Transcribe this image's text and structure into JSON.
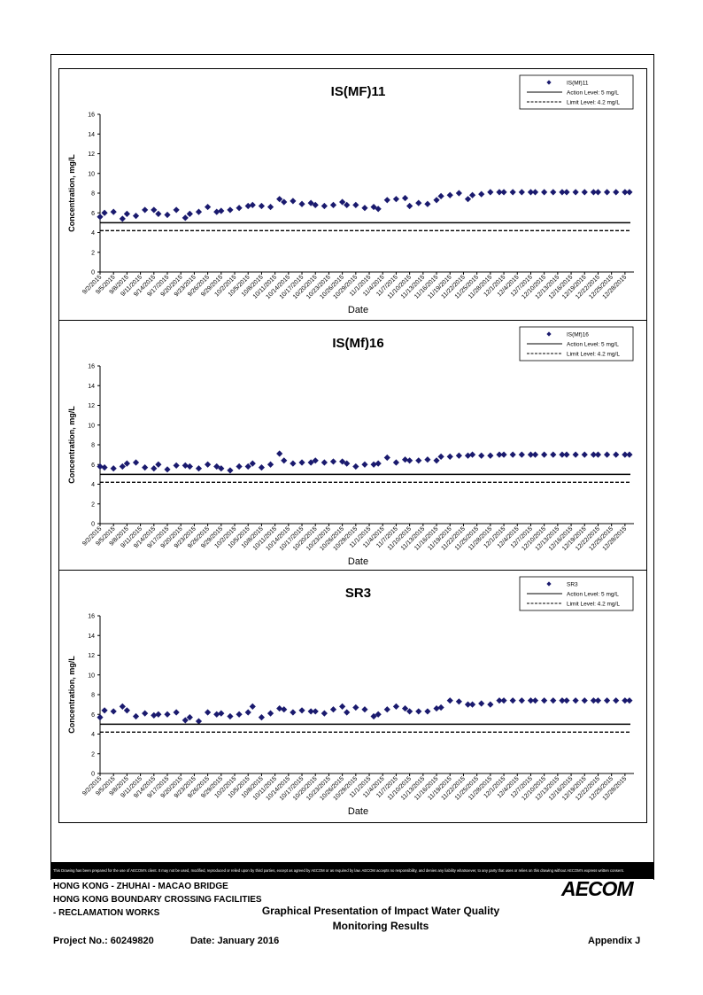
{
  "footer": {
    "disclaimer": "This Drawing has been prepared for the use of AECOM's client. It may not be used, modified, reproduced or relied upon by third parties, except as agreed by AECOM or as required by law. AECOM accepts no responsibility, and denies any liability whatsoever, to any party that uses or relies on this drawing without AECOM's express written consent.",
    "line1": "HONG KONG - ZHUHAI - MACAO BRIDGE",
    "line2": "HONG KONG BOUNDARY CROSSING FACILITIES",
    "line3": "- RECLAMATION WORKS",
    "doc_title_1": "Graphical Presentation of Impact Water Quality",
    "doc_title_2": "Monitoring Results",
    "project_no": "Project No.: 60249820",
    "date": "Date: January 2016",
    "appendix": "Appendix J",
    "logo": "AECOM"
  },
  "colors": {
    "marker": "#1a1a6e",
    "line": "#000000"
  },
  "chart_data": [
    {
      "type": "scatter",
      "title": "IS(MF)11",
      "xlabel": "Date",
      "ylabel": "Concentration, mg/L",
      "ylim": [
        0,
        16
      ],
      "yticks": [
        0,
        2,
        4,
        6,
        8,
        10,
        12,
        14,
        16
      ],
      "grid": false,
      "legend_position": "top-right",
      "xticks": [
        "9/2/2015",
        "9/5/2015",
        "9/8/2015",
        "9/11/2015",
        "9/14/2015",
        "9/17/2015",
        "9/20/2015",
        "9/23/2015",
        "9/26/2015",
        "9/29/2015",
        "10/2/2015",
        "10/5/2015",
        "10/8/2015",
        "10/11/2015",
        "10/14/2015",
        "10/17/2015",
        "10/20/2015",
        "10/23/2015",
        "10/26/2015",
        "10/29/2015",
        "11/1/2015",
        "11/4/2015",
        "11/7/2015",
        "11/10/2015",
        "11/13/2015",
        "11/16/2015",
        "11/19/2015",
        "11/22/2015",
        "11/25/2015",
        "11/28/2015",
        "12/1/2015",
        "12/4/2015",
        "12/7/2015",
        "12/10/2015",
        "12/13/2015",
        "12/16/2015",
        "12/19/2015",
        "12/22/2015",
        "12/25/2015",
        "12/28/2015"
      ],
      "series": [
        {
          "name": "IS(Mf)11",
          "marker": "diamond",
          "x": [
            "9/2/2015",
            "9/3/2015",
            "9/5/2015",
            "9/7/2015",
            "9/8/2015",
            "9/10/2015",
            "9/12/2015",
            "9/14/2015",
            "9/15/2015",
            "9/17/2015",
            "9/19/2015",
            "9/21/2015",
            "9/22/2015",
            "9/24/2015",
            "9/26/2015",
            "9/28/2015",
            "9/29/2015",
            "10/1/2015",
            "10/3/2015",
            "10/5/2015",
            "10/6/2015",
            "10/8/2015",
            "10/10/2015",
            "10/12/2015",
            "10/13/2015",
            "10/15/2015",
            "10/17/2015",
            "10/19/2015",
            "10/20/2015",
            "10/22/2015",
            "10/24/2015",
            "10/26/2015",
            "10/27/2015",
            "10/29/2015",
            "10/31/2015",
            "11/2/2015",
            "11/3/2015",
            "11/5/2015",
            "11/7/2015",
            "11/9/2015",
            "11/10/2015",
            "11/12/2015",
            "11/14/2015",
            "11/16/2015",
            "11/17/2015",
            "11/19/2015",
            "11/21/2015",
            "11/23/2015",
            "11/24/2015",
            "11/26/2015",
            "11/28/2015",
            "11/30/2015",
            "12/1/2015",
            "12/3/2015",
            "12/5/2015",
            "12/7/2015",
            "12/8/2015",
            "12/10/2015",
            "12/12/2015",
            "12/14/2015",
            "12/15/2015",
            "12/17/2015",
            "12/19/2015",
            "12/21/2015",
            "12/22/2015",
            "12/24/2015",
            "12/26/2015",
            "12/28/2015",
            "12/29/2015"
          ],
          "y": [
            5.6,
            6.0,
            6.1,
            5.4,
            5.9,
            5.7,
            6.3,
            6.3,
            5.9,
            5.8,
            6.3,
            5.5,
            5.9,
            6.1,
            6.6,
            6.1,
            6.2,
            6.3,
            6.5,
            6.7,
            6.8,
            6.7,
            6.6,
            7.4,
            7.1,
            7.2,
            6.9,
            7.0,
            6.8,
            6.7,
            6.8,
            7.1,
            6.8,
            6.8,
            6.5,
            6.6,
            6.4,
            7.3,
            7.4,
            7.5,
            6.7,
            7.0,
            6.9,
            7.3,
            7.7,
            7.8,
            8.0,
            7.4,
            7.8,
            7.9,
            8.1,
            8.1,
            8.1,
            8.1,
            8.1,
            8.1,
            8.1,
            8.1,
            8.1,
            8.1,
            8.1,
            8.1,
            8.1,
            8.1,
            8.1,
            8.1,
            8.1,
            8.1,
            8.1
          ]
        },
        {
          "name": "Action Level: 5 mg/L",
          "style": "solid",
          "value": 5
        },
        {
          "name": "Limit Level: 4.2 mg/L",
          "style": "dashed",
          "value": 4.2
        }
      ]
    },
    {
      "type": "scatter",
      "title": "IS(Mf)16",
      "xlabel": "Date",
      "ylabel": "Concentration, mg/L",
      "ylim": [
        0,
        16
      ],
      "yticks": [
        0,
        2,
        4,
        6,
        8,
        10,
        12,
        14,
        16
      ],
      "grid": false,
      "legend_position": "top-right",
      "xticks": [
        "9/2/2015",
        "9/5/2015",
        "9/8/2015",
        "9/11/2015",
        "9/14/2015",
        "9/17/2015",
        "9/20/2015",
        "9/23/2015",
        "9/26/2015",
        "9/29/2015",
        "10/2/2015",
        "10/5/2015",
        "10/8/2015",
        "10/11/2015",
        "10/14/2015",
        "10/17/2015",
        "10/20/2015",
        "10/23/2015",
        "10/26/2015",
        "10/29/2015",
        "11/1/2015",
        "11/4/2015",
        "11/7/2015",
        "11/10/2015",
        "11/13/2015",
        "11/16/2015",
        "11/19/2015",
        "11/22/2015",
        "11/25/2015",
        "11/28/2015",
        "12/1/2015",
        "12/4/2015",
        "12/7/2015",
        "12/10/2015",
        "12/13/2015",
        "12/16/2015",
        "12/19/2015",
        "12/22/2015",
        "12/25/2015",
        "12/28/2015"
      ],
      "series": [
        {
          "name": "IS(Mf)16",
          "marker": "diamond",
          "x": [
            "9/2/2015",
            "9/3/2015",
            "9/5/2015",
            "9/7/2015",
            "9/8/2015",
            "9/10/2015",
            "9/12/2015",
            "9/14/2015",
            "9/15/2015",
            "9/17/2015",
            "9/19/2015",
            "9/21/2015",
            "9/22/2015",
            "9/24/2015",
            "9/26/2015",
            "9/28/2015",
            "9/29/2015",
            "10/1/2015",
            "10/3/2015",
            "10/5/2015",
            "10/6/2015",
            "10/8/2015",
            "10/10/2015",
            "10/12/2015",
            "10/13/2015",
            "10/15/2015",
            "10/17/2015",
            "10/19/2015",
            "10/20/2015",
            "10/22/2015",
            "10/24/2015",
            "10/26/2015",
            "10/27/2015",
            "10/29/2015",
            "10/31/2015",
            "11/2/2015",
            "11/3/2015",
            "11/5/2015",
            "11/7/2015",
            "11/9/2015",
            "11/10/2015",
            "11/12/2015",
            "11/14/2015",
            "11/16/2015",
            "11/17/2015",
            "11/19/2015",
            "11/21/2015",
            "11/23/2015",
            "11/24/2015",
            "11/26/2015",
            "11/28/2015",
            "11/30/2015",
            "12/1/2015",
            "12/3/2015",
            "12/5/2015",
            "12/7/2015",
            "12/8/2015",
            "12/10/2015",
            "12/12/2015",
            "12/14/2015",
            "12/15/2015",
            "12/17/2015",
            "12/19/2015",
            "12/21/2015",
            "12/22/2015",
            "12/24/2015",
            "12/26/2015",
            "12/28/2015",
            "12/29/2015"
          ],
          "y": [
            5.8,
            5.7,
            5.6,
            5.8,
            6.1,
            6.2,
            5.7,
            5.6,
            6.0,
            5.5,
            5.9,
            5.9,
            5.8,
            5.6,
            6.0,
            5.8,
            5.6,
            5.4,
            5.8,
            5.8,
            6.1,
            5.7,
            6.0,
            7.1,
            6.4,
            6.1,
            6.2,
            6.2,
            6.4,
            6.2,
            6.3,
            6.3,
            6.1,
            5.8,
            6.0,
            6.0,
            6.1,
            6.7,
            6.2,
            6.5,
            6.4,
            6.4,
            6.5,
            6.4,
            6.8,
            6.8,
            6.9,
            6.9,
            7.0,
            6.9,
            6.9,
            7.0,
            7.0,
            7.0,
            7.0,
            7.0,
            7.0,
            7.0,
            7.0,
            7.0,
            7.0,
            7.0,
            7.0,
            7.0,
            7.0,
            7.0,
            7.0,
            7.0,
            7.0
          ]
        },
        {
          "name": "Action Level: 5 mg/L",
          "style": "solid",
          "value": 5
        },
        {
          "name": "Limit Level: 4.2 mg/L",
          "style": "dashed",
          "value": 4.2
        }
      ]
    },
    {
      "type": "scatter",
      "title": "SR3",
      "xlabel": "Date",
      "ylabel": "Concentration, mg/L",
      "ylim": [
        0,
        16
      ],
      "yticks": [
        0,
        2,
        4,
        6,
        8,
        10,
        12,
        14,
        16
      ],
      "grid": false,
      "legend_position": "top-right",
      "xticks": [
        "9/2/2015",
        "9/5/2015",
        "9/8/2015",
        "9/11/2015",
        "9/14/2015",
        "9/17/2015",
        "9/20/2015",
        "9/23/2015",
        "9/26/2015",
        "9/29/2015",
        "10/2/2015",
        "10/5/2015",
        "10/8/2015",
        "10/11/2015",
        "10/14/2015",
        "10/17/2015",
        "10/20/2015",
        "10/23/2015",
        "10/26/2015",
        "10/29/2015",
        "11/1/2015",
        "11/4/2015",
        "11/7/2015",
        "11/10/2015",
        "11/13/2015",
        "11/16/2015",
        "11/19/2015",
        "11/22/2015",
        "11/25/2015",
        "11/28/2015",
        "12/1/2015",
        "12/4/2015",
        "12/7/2015",
        "12/10/2015",
        "12/13/2015",
        "12/16/2015",
        "12/19/2015",
        "12/22/2015",
        "12/25/2015",
        "12/28/2015"
      ],
      "series": [
        {
          "name": "SR3",
          "marker": "diamond",
          "x": [
            "9/2/2015",
            "9/3/2015",
            "9/5/2015",
            "9/7/2015",
            "9/8/2015",
            "9/10/2015",
            "9/12/2015",
            "9/14/2015",
            "9/15/2015",
            "9/17/2015",
            "9/19/2015",
            "9/21/2015",
            "9/22/2015",
            "9/24/2015",
            "9/26/2015",
            "9/28/2015",
            "9/29/2015",
            "10/1/2015",
            "10/3/2015",
            "10/5/2015",
            "10/6/2015",
            "10/8/2015",
            "10/10/2015",
            "10/12/2015",
            "10/13/2015",
            "10/15/2015",
            "10/17/2015",
            "10/19/2015",
            "10/20/2015",
            "10/22/2015",
            "10/24/2015",
            "10/26/2015",
            "10/27/2015",
            "10/29/2015",
            "10/31/2015",
            "11/2/2015",
            "11/3/2015",
            "11/5/2015",
            "11/7/2015",
            "11/9/2015",
            "11/10/2015",
            "11/12/2015",
            "11/14/2015",
            "11/16/2015",
            "11/17/2015",
            "11/19/2015",
            "11/21/2015",
            "11/23/2015",
            "11/24/2015",
            "11/26/2015",
            "11/28/2015",
            "11/30/2015",
            "12/1/2015",
            "12/3/2015",
            "12/5/2015",
            "12/7/2015",
            "12/8/2015",
            "12/10/2015",
            "12/12/2015",
            "12/14/2015",
            "12/15/2015",
            "12/17/2015",
            "12/19/2015",
            "12/21/2015",
            "12/22/2015",
            "12/24/2015",
            "12/26/2015",
            "12/28/2015",
            "12/29/2015"
          ],
          "y": [
            5.7,
            6.4,
            6.3,
            6.8,
            6.4,
            5.8,
            6.1,
            5.9,
            6.0,
            6.0,
            6.2,
            5.4,
            5.7,
            5.3,
            6.2,
            6.0,
            6.1,
            5.8,
            6.0,
            6.2,
            6.8,
            5.7,
            6.1,
            6.6,
            6.5,
            6.2,
            6.4,
            6.3,
            6.3,
            6.1,
            6.5,
            6.8,
            6.2,
            6.7,
            6.5,
            5.8,
            6.0,
            6.5,
            6.8,
            6.6,
            6.3,
            6.3,
            6.3,
            6.6,
            6.7,
            7.4,
            7.3,
            7.0,
            7.0,
            7.1,
            7.0,
            7.4,
            7.4,
            7.4,
            7.4,
            7.4,
            7.4,
            7.4,
            7.4,
            7.4,
            7.4,
            7.4,
            7.4,
            7.4,
            7.4,
            7.4,
            7.4,
            7.4,
            7.4
          ]
        },
        {
          "name": "Action Level: 5 mg/L",
          "style": "solid",
          "value": 5
        },
        {
          "name": "Limit Level: 4.2 mg/L",
          "style": "dashed",
          "value": 4.2
        }
      ]
    }
  ]
}
